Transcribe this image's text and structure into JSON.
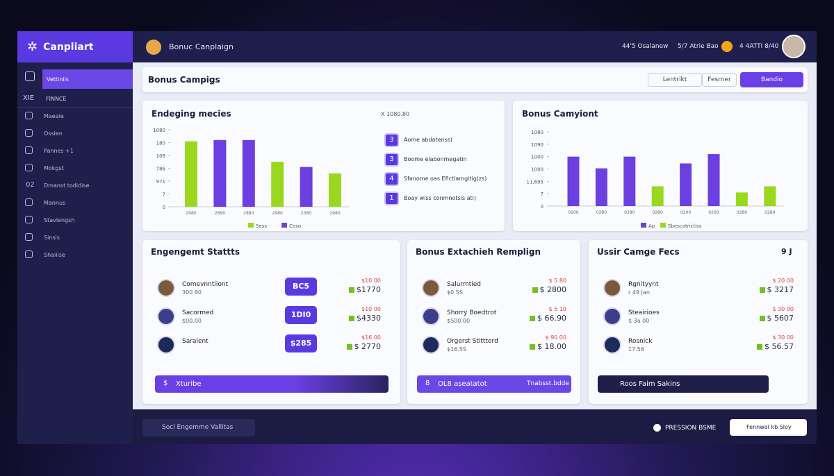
{
  "topbar": {
    "brand": "Canpliart",
    "page": "Bonuc Canplaign",
    "stat1": "44'5 Osalanew",
    "stat2": "5/7 Atrie Bao",
    "stat3": "4 4ATTI 8/40"
  },
  "sidebar": {
    "active": "Vettiniis",
    "section": "FINNCE",
    "section_tag": "XIE",
    "items": [
      "Maeaie",
      "Osslen",
      "Pannes +1",
      "Mokgst",
      "Dmanst todidise",
      "Mannus",
      "Stavlengsh",
      "Sinsis",
      "Shaiiise"
    ],
    "item5_tag": "02"
  },
  "header": {
    "title": "Bonus Campigs",
    "btn1": "Lentrikt",
    "btn2": "Fesrner",
    "btn3": "Bandio"
  },
  "chart_data": [
    {
      "type": "bar",
      "title": "Endeging mecies",
      "note": "X 1080.80",
      "categories": [
        "2980",
        "2890",
        "2880",
        "2980",
        "2380",
        "2980"
      ],
      "values": [
        5.1,
        5.2,
        5.2,
        3.5,
        3.1,
        2.6
      ],
      "colors": [
        "#9ad81e",
        "#6b3fe0",
        "#6b3fe0",
        "#9ad81e",
        "#6b3fe0",
        "#9ad81e"
      ],
      "ylim": [
        0,
        6
      ],
      "yticks": [
        0,
        {
          "value": 1,
          "label": "7"
        },
        {
          "value": 2,
          "label": "971"
        },
        {
          "value": 3,
          "label": "786"
        },
        {
          "value": 4,
          "label": "108"
        },
        {
          "value": 5,
          "label": "180"
        },
        {
          "value": 6,
          "label": "1080"
        }
      ],
      "legend": [
        {
          "name": "Sess",
          "color": "#9ad81e"
        },
        {
          "name": "Ceso",
          "color": "#6b3fe0"
        }
      ]
    },
    {
      "type": "bar",
      "title": "Bonus Camyiont",
      "categories": [
        "0200",
        "0280",
        "0280",
        "0280",
        "0200",
        "0200",
        "0280",
        "0280"
      ],
      "values": [
        4.0,
        3.05,
        4.0,
        1.6,
        3.45,
        4.2,
        1.1,
        1.6
      ],
      "colors": [
        "#6b3fe0",
        "#6b3fe0",
        "#6b3fe0",
        "#9ad81e",
        "#6b3fe0",
        "#6b3fe0",
        "#9ad81e",
        "#9ad81e"
      ],
      "ylim": [
        0,
        6
      ],
      "yticks": [
        0,
        {
          "value": 1,
          "label": "7"
        },
        {
          "value": 2,
          "label": "11,695"
        },
        {
          "value": 3,
          "label": "1000"
        },
        {
          "value": 4,
          "label": "1000"
        },
        {
          "value": 5,
          "label": "1090"
        },
        {
          "value": 6,
          "label": "1080"
        }
      ],
      "legend": [
        {
          "name": "Ap",
          "color": "#6b3fe0"
        },
        {
          "name": "Sbescatrictiss",
          "color": "#9ad81e"
        }
      ]
    }
  ],
  "steps": [
    {
      "num": "3",
      "text": "Aome abdatenss)"
    },
    {
      "num": "3",
      "text": "Boome elabonmegatin"
    },
    {
      "num": "4",
      "text": "Sfanome oas Efictlamgitig(zs)"
    },
    {
      "num": "1",
      "text": "Boay wiss conmnotsis ati)"
    }
  ],
  "cards": [
    {
      "title": "Engengemt Stattts",
      "button": "Xturibe",
      "button_tag": "$",
      "items": [
        {
          "name": "Comevnntiiont",
          "sub": "300 80",
          "badge": "BC5",
          "red": "$10 00",
          "amount": "$1770"
        },
        {
          "name": "Sacormed",
          "sub": "$00.00",
          "badge": "1DI0",
          "red": "$10 00",
          "amount": "$4330"
        },
        {
          "name": "Saraient",
          "sub": "",
          "badge": "$285",
          "red": "$16 00",
          "amount": "$ 2770"
        }
      ]
    },
    {
      "title": "Bonus Extachieh Remplign",
      "button": "OL8 aseatatot",
      "button_tag": "8",
      "button_right": "Tnabsst.bdde",
      "items": [
        {
          "name": "Salurmtied",
          "sub": "$0 5S",
          "red": "$ 5 80",
          "amount": "$ 2800"
        },
        {
          "name": "Shorry Boedtrot",
          "sub": "$S00.00",
          "red": "$ 5 10",
          "amount": "$ 66.90"
        },
        {
          "name": "Orgerst Stittterd",
          "sub": "$16.5S",
          "red": "$ 90 00",
          "amount": "$ 18.00"
        }
      ]
    },
    {
      "title": "Ussir Camge Fecs",
      "button": "Roos Faim Sakins",
      "corner": "9 J",
      "items": [
        {
          "name": "Rgnityynt",
          "sub": "r 49 Jan",
          "red": "$ 20 00",
          "amount": "$ 3217"
        },
        {
          "name": "Steairioes",
          "sub": "$ 3a 00",
          "red": "$ 30 00",
          "amount": "$ 5607"
        },
        {
          "name": "Rosnick",
          "sub": "17.56",
          "red": "$ 30 00",
          "amount": "$ 56.57"
        }
      ]
    }
  ],
  "footer": {
    "left": "Socl Engemme Vallitas",
    "mid": "PRESSION BSME",
    "right": "Fennwal kb Sloy"
  }
}
